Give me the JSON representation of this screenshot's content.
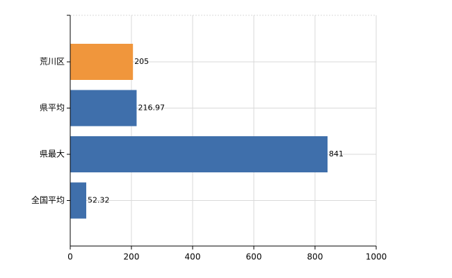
{
  "chart_data": {
    "type": "hbar",
    "categories": [
      "荒川区",
      "県平均",
      "県最大",
      "全国平均"
    ],
    "values": [
      205,
      216.97,
      841,
      52.32
    ],
    "colors": [
      "#f0963c",
      "#3f6fab",
      "#3f6fab",
      "#3f6fab"
    ],
    "xlim": [
      0,
      1000
    ],
    "xticks": [
      0,
      200,
      400,
      600,
      800,
      1000
    ],
    "grid": true
  }
}
